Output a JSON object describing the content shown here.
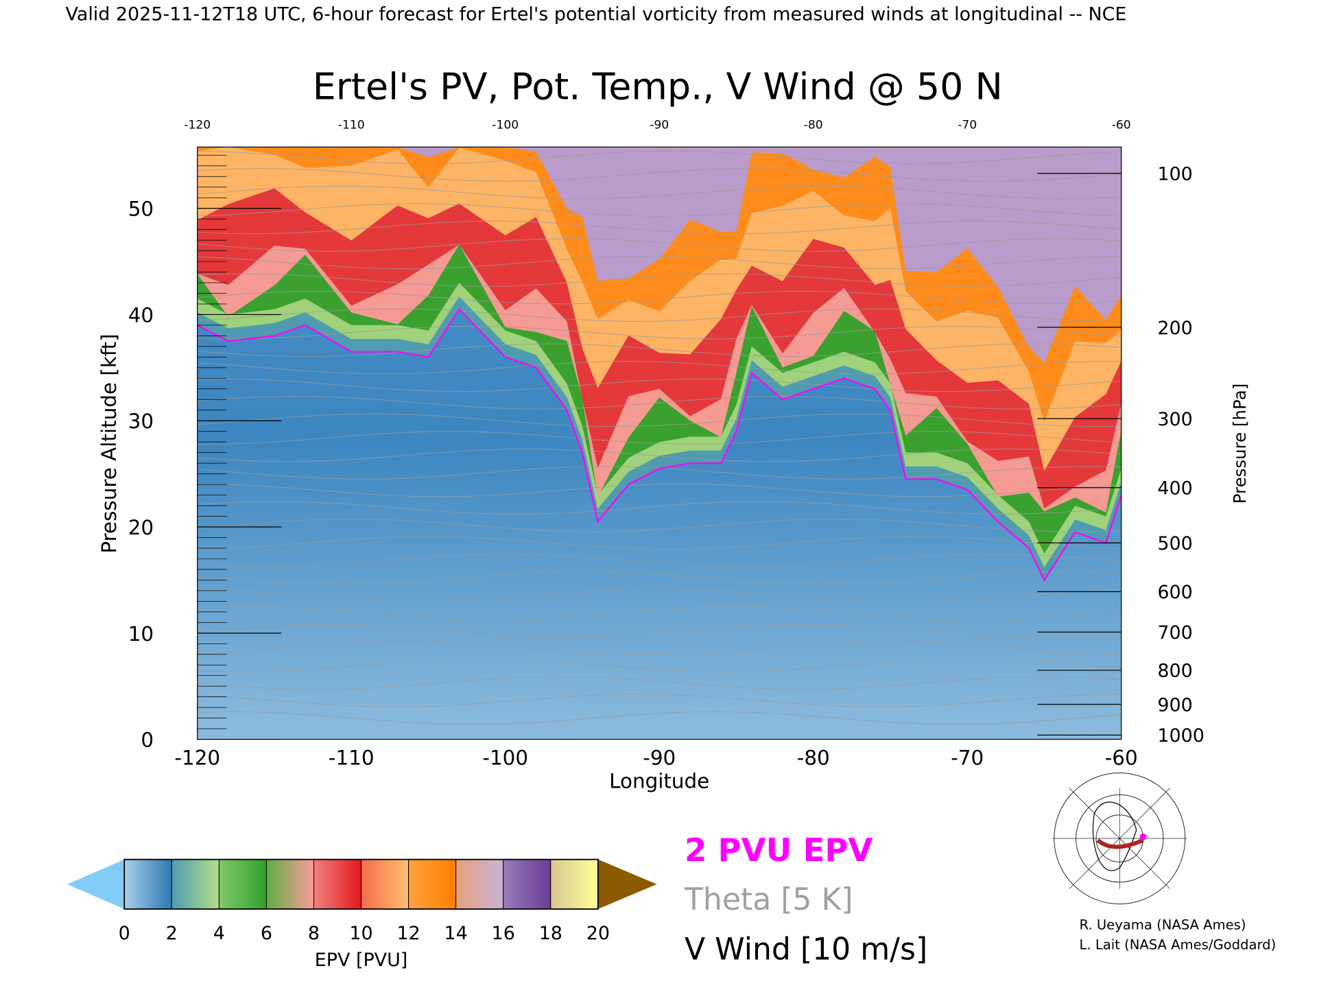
{
  "header": "Valid 2025-11-12T18 UTC, 6-hour forecast for Ertel's potential vorticity from measured winds at longitudinal -- NCE",
  "chart_data": {
    "type": "heatmap",
    "title": "Ertel's PV, Pot. Temp., V Wind @ 50 N",
    "xlabel": "Longitude",
    "ylabel_left": "Pressure Altitude [kft]",
    "ylabel_right": "Pressure [hPa]",
    "xlim": [
      -120,
      -60
    ],
    "ylim_kft": [
      0,
      56
    ],
    "x_ticks": [
      "-120",
      "-110",
      "-100",
      "-90",
      "-80",
      "-70",
      "-60"
    ],
    "x_tick_values": [
      -120,
      -110,
      -100,
      -90,
      -80,
      -70,
      -60
    ],
    "top_ticks": [
      "-120",
      "-110",
      "-100",
      "-90",
      "-80",
      "-70",
      "-60"
    ],
    "y_ticks": [
      "0",
      "10",
      "20",
      "30",
      "40",
      "50"
    ],
    "y_tick_values": [
      0,
      10,
      20,
      30,
      40,
      50
    ],
    "pressure_ticks": [
      "100",
      "200",
      "300",
      "400",
      "500",
      "600",
      "700",
      "800",
      "900",
      "1000"
    ],
    "pressure_tick_kft": [
      53.3,
      38.8,
      30.2,
      23.7,
      18.5,
      13.9,
      10.1,
      6.5,
      3.3,
      0.4
    ],
    "pv2_tropopause": {
      "lon": [
        -120,
        -118,
        -115,
        -113,
        -110,
        -107,
        -105,
        -103,
        -100,
        -98,
        -96,
        -95,
        -94,
        -92,
        -90,
        -88,
        -86,
        -85,
        -84,
        -82,
        -80,
        -78,
        -76,
        -75,
        -74,
        -72,
        -70,
        -68,
        -66,
        -65,
        -63,
        -61,
        -60
      ],
      "kft": [
        39,
        37.5,
        38,
        39,
        36.5,
        36.5,
        36,
        40.5,
        36,
        35,
        31,
        27,
        20.5,
        24,
        25.5,
        26,
        26,
        29,
        34.5,
        32,
        33,
        34,
        33,
        31,
        24.5,
        24.5,
        23.5,
        20.5,
        18,
        15,
        19.5,
        18.5,
        23
      ]
    },
    "colorbar": {
      "label": "EPV [PVU]",
      "ticks": [
        "0",
        "2",
        "4",
        "6",
        "8",
        "10",
        "12",
        "14",
        "16",
        "18",
        "20"
      ],
      "under_color": "#82cdf7",
      "over_color": "#8c5a00",
      "segments": [
        {
          "from": 0,
          "to": 2,
          "colors": [
            "#a9cfe6",
            "#2b78b4"
          ]
        },
        {
          "from": 2,
          "to": 4,
          "colors": [
            "#4f9bb0",
            "#b2df8a"
          ]
        },
        {
          "from": 4,
          "to": 6,
          "colors": [
            "#80c96a",
            "#33a02c"
          ]
        },
        {
          "from": 6,
          "to": 8,
          "colors": [
            "#5fae45",
            "#fb9a99"
          ]
        },
        {
          "from": 8,
          "to": 10,
          "colors": [
            "#f08080",
            "#e31a1c"
          ]
        },
        {
          "from": 10,
          "to": 12,
          "colors": [
            "#f56d4c",
            "#fdbf6f"
          ]
        },
        {
          "from": 12,
          "to": 14,
          "colors": [
            "#fda23f",
            "#ff7f00"
          ]
        },
        {
          "from": 14,
          "to": 16,
          "colors": [
            "#e8a07a",
            "#cab2d6"
          ]
        },
        {
          "from": 16,
          "to": 18,
          "colors": [
            "#9a7ab8",
            "#6a3d9a"
          ]
        },
        {
          "from": 18,
          "to": 20,
          "colors": [
            "#d9c690",
            "#ffff99"
          ]
        }
      ]
    },
    "legend": {
      "pv2": "2 PVU EPV",
      "theta": "Theta [5 K]",
      "wind": "V Wind [10 m/s]",
      "pv2_color": "#ff00ff",
      "theta_color": "#a0a0a0",
      "wind_color": "#000000"
    }
  },
  "credits": [
    "R. Ueyama (NASA Ames)",
    "L. Lait (NASA Ames/Goddard)"
  ]
}
